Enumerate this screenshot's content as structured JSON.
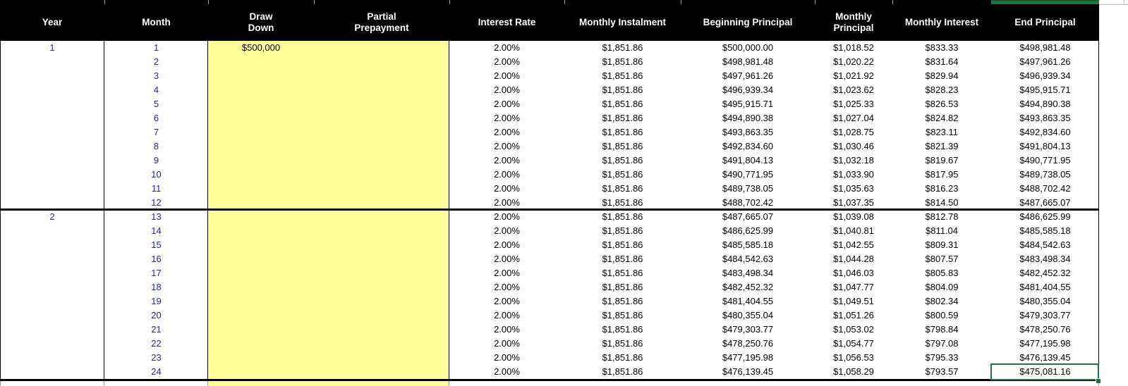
{
  "app": {
    "type": "spreadsheet-loan-amortization-table"
  },
  "colors": {
    "header_bg": "#000000",
    "header_text": "#ffffff",
    "input_highlight_yellow": "#ffff99",
    "year_month_blue": "#2020c8",
    "selection_green": "#217346",
    "value_text": "#000000"
  },
  "table": {
    "column_keys": [
      "year",
      "month",
      "draw_down",
      "partial_prepayment",
      "interest_rate",
      "monthly_instalment",
      "beginning_principal",
      "monthly_principal",
      "monthly_interest",
      "end_principal"
    ],
    "columns": [
      {
        "label": "Year"
      },
      {
        "label": "Month"
      },
      {
        "label": "Draw\nDown"
      },
      {
        "label": "Partial\nPrepayment"
      },
      {
        "label": "Interest Rate"
      },
      {
        "label": "Monthly Instalment"
      },
      {
        "label": "Beginning Principal"
      },
      {
        "label": "Monthly\nPrincipal"
      },
      {
        "label": "Monthly Interest"
      },
      {
        "label": "End Principal"
      }
    ],
    "rows": [
      {
        "year": "1",
        "month": "1",
        "draw_down": "$500,000",
        "partial_prepayment": "",
        "interest_rate": "2.00%",
        "monthly_instalment": "$1,851.86",
        "beginning_principal": "$500,000.00",
        "monthly_principal": "$1,018.52",
        "monthly_interest": "$833.33",
        "end_principal": "$498,981.48"
      },
      {
        "year": "",
        "month": "2",
        "draw_down": "",
        "partial_prepayment": "",
        "interest_rate": "2.00%",
        "monthly_instalment": "$1,851.86",
        "beginning_principal": "$498,981.48",
        "monthly_principal": "$1,020.22",
        "monthly_interest": "$831.64",
        "end_principal": "$497,961.26"
      },
      {
        "year": "",
        "month": "3",
        "draw_down": "",
        "partial_prepayment": "",
        "interest_rate": "2.00%",
        "monthly_instalment": "$1,851.86",
        "beginning_principal": "$497,961.26",
        "monthly_principal": "$1,021.92",
        "monthly_interest": "$829.94",
        "end_principal": "$496,939.34"
      },
      {
        "year": "",
        "month": "4",
        "draw_down": "",
        "partial_prepayment": "",
        "interest_rate": "2.00%",
        "monthly_instalment": "$1,851.86",
        "beginning_principal": "$496,939.34",
        "monthly_principal": "$1,023.62",
        "monthly_interest": "$828.23",
        "end_principal": "$495,915.71"
      },
      {
        "year": "",
        "month": "5",
        "draw_down": "",
        "partial_prepayment": "",
        "interest_rate": "2.00%",
        "monthly_instalment": "$1,851.86",
        "beginning_principal": "$495,915.71",
        "monthly_principal": "$1,025.33",
        "monthly_interest": "$826.53",
        "end_principal": "$494,890.38"
      },
      {
        "year": "",
        "month": "6",
        "draw_down": "",
        "partial_prepayment": "",
        "interest_rate": "2.00%",
        "monthly_instalment": "$1,851.86",
        "beginning_principal": "$494,890.38",
        "monthly_principal": "$1,027.04",
        "monthly_interest": "$824.82",
        "end_principal": "$493,863.35"
      },
      {
        "year": "",
        "month": "7",
        "draw_down": "",
        "partial_prepayment": "",
        "interest_rate": "2.00%",
        "monthly_instalment": "$1,851.86",
        "beginning_principal": "$493,863.35",
        "monthly_principal": "$1,028.75",
        "monthly_interest": "$823.11",
        "end_principal": "$492,834.60"
      },
      {
        "year": "",
        "month": "8",
        "draw_down": "",
        "partial_prepayment": "",
        "interest_rate": "2.00%",
        "monthly_instalment": "$1,851.86",
        "beginning_principal": "$492,834.60",
        "monthly_principal": "$1,030.46",
        "monthly_interest": "$821.39",
        "end_principal": "$491,804.13"
      },
      {
        "year": "",
        "month": "9",
        "draw_down": "",
        "partial_prepayment": "",
        "interest_rate": "2.00%",
        "monthly_instalment": "$1,851.86",
        "beginning_principal": "$491,804.13",
        "monthly_principal": "$1,032.18",
        "monthly_interest": "$819.67",
        "end_principal": "$490,771.95"
      },
      {
        "year": "",
        "month": "10",
        "draw_down": "",
        "partial_prepayment": "",
        "interest_rate": "2.00%",
        "monthly_instalment": "$1,851.86",
        "beginning_principal": "$490,771.95",
        "monthly_principal": "$1,033.90",
        "monthly_interest": "$817.95",
        "end_principal": "$489,738.05"
      },
      {
        "year": "",
        "month": "11",
        "draw_down": "",
        "partial_prepayment": "",
        "interest_rate": "2.00%",
        "monthly_instalment": "$1,851.86",
        "beginning_principal": "$489,738.05",
        "monthly_principal": "$1,035.63",
        "monthly_interest": "$816.23",
        "end_principal": "$488,702.42"
      },
      {
        "year": "",
        "month": "12",
        "draw_down": "",
        "partial_prepayment": "",
        "interest_rate": "2.00%",
        "monthly_instalment": "$1,851.86",
        "beginning_principal": "$488,702.42",
        "monthly_principal": "$1,037.35",
        "monthly_interest": "$814.50",
        "end_principal": "$487,665.07"
      },
      {
        "year": "2",
        "month": "13",
        "draw_down": "",
        "partial_prepayment": "",
        "interest_rate": "2.00%",
        "monthly_instalment": "$1,851.86",
        "beginning_principal": "$487,665.07",
        "monthly_principal": "$1,039.08",
        "monthly_interest": "$812.78",
        "end_principal": "$486,625.99"
      },
      {
        "year": "",
        "month": "14",
        "draw_down": "",
        "partial_prepayment": "",
        "interest_rate": "2.00%",
        "monthly_instalment": "$1,851.86",
        "beginning_principal": "$486,625.99",
        "monthly_principal": "$1,040.81",
        "monthly_interest": "$811.04",
        "end_principal": "$485,585.18"
      },
      {
        "year": "",
        "month": "15",
        "draw_down": "",
        "partial_prepayment": "",
        "interest_rate": "2.00%",
        "monthly_instalment": "$1,851.86",
        "beginning_principal": "$485,585.18",
        "monthly_principal": "$1,042.55",
        "monthly_interest": "$809.31",
        "end_principal": "$484,542.63"
      },
      {
        "year": "",
        "month": "16",
        "draw_down": "",
        "partial_prepayment": "",
        "interest_rate": "2.00%",
        "monthly_instalment": "$1,851.86",
        "beginning_principal": "$484,542.63",
        "monthly_principal": "$1,044.28",
        "monthly_interest": "$807.57",
        "end_principal": "$483,498.34"
      },
      {
        "year": "",
        "month": "17",
        "draw_down": "",
        "partial_prepayment": "",
        "interest_rate": "2.00%",
        "monthly_instalment": "$1,851.86",
        "beginning_principal": "$483,498.34",
        "monthly_principal": "$1,046.03",
        "monthly_interest": "$805.83",
        "end_principal": "$482,452.32"
      },
      {
        "year": "",
        "month": "18",
        "draw_down": "",
        "partial_prepayment": "",
        "interest_rate": "2.00%",
        "monthly_instalment": "$1,851.86",
        "beginning_principal": "$482,452.32",
        "monthly_principal": "$1,047.77",
        "monthly_interest": "$804.09",
        "end_principal": "$481,404.55"
      },
      {
        "year": "",
        "month": "19",
        "draw_down": "",
        "partial_prepayment": "",
        "interest_rate": "2.00%",
        "monthly_instalment": "$1,851.86",
        "beginning_principal": "$481,404.55",
        "monthly_principal": "$1,049.51",
        "monthly_interest": "$802.34",
        "end_principal": "$480,355.04"
      },
      {
        "year": "",
        "month": "20",
        "draw_down": "",
        "partial_prepayment": "",
        "interest_rate": "2.00%",
        "monthly_instalment": "$1,851.86",
        "beginning_principal": "$480,355.04",
        "monthly_principal": "$1,051.26",
        "monthly_interest": "$800.59",
        "end_principal": "$479,303.77"
      },
      {
        "year": "",
        "month": "21",
        "draw_down": "",
        "partial_prepayment": "",
        "interest_rate": "2.00%",
        "monthly_instalment": "$1,851.86",
        "beginning_principal": "$479,303.77",
        "monthly_principal": "$1,053.02",
        "monthly_interest": "$798.84",
        "end_principal": "$478,250.76"
      },
      {
        "year": "",
        "month": "22",
        "draw_down": "",
        "partial_prepayment": "",
        "interest_rate": "2.00%",
        "monthly_instalment": "$1,851.86",
        "beginning_principal": "$478,250.76",
        "monthly_principal": "$1,054.77",
        "monthly_interest": "$797.08",
        "end_principal": "$477,195.98"
      },
      {
        "year": "",
        "month": "23",
        "draw_down": "",
        "partial_prepayment": "",
        "interest_rate": "2.00%",
        "monthly_instalment": "$1,851.86",
        "beginning_principal": "$477,195.98",
        "monthly_principal": "$1,056.53",
        "monthly_interest": "$795.33",
        "end_principal": "$476,139.45"
      },
      {
        "year": "",
        "month": "24",
        "draw_down": "",
        "partial_prepayment": "",
        "interest_rate": "2.00%",
        "monthly_instalment": "$1,851.86",
        "beginning_principal": "$476,139.45",
        "monthly_principal": "$1,058.29",
        "monthly_interest": "$793.57",
        "end_principal": "$475,081.16"
      }
    ]
  },
  "selection": {
    "selected_cell_column": "end_principal",
    "selected_cell_month": "24",
    "selected_cell_value": "$475,081.16"
  }
}
